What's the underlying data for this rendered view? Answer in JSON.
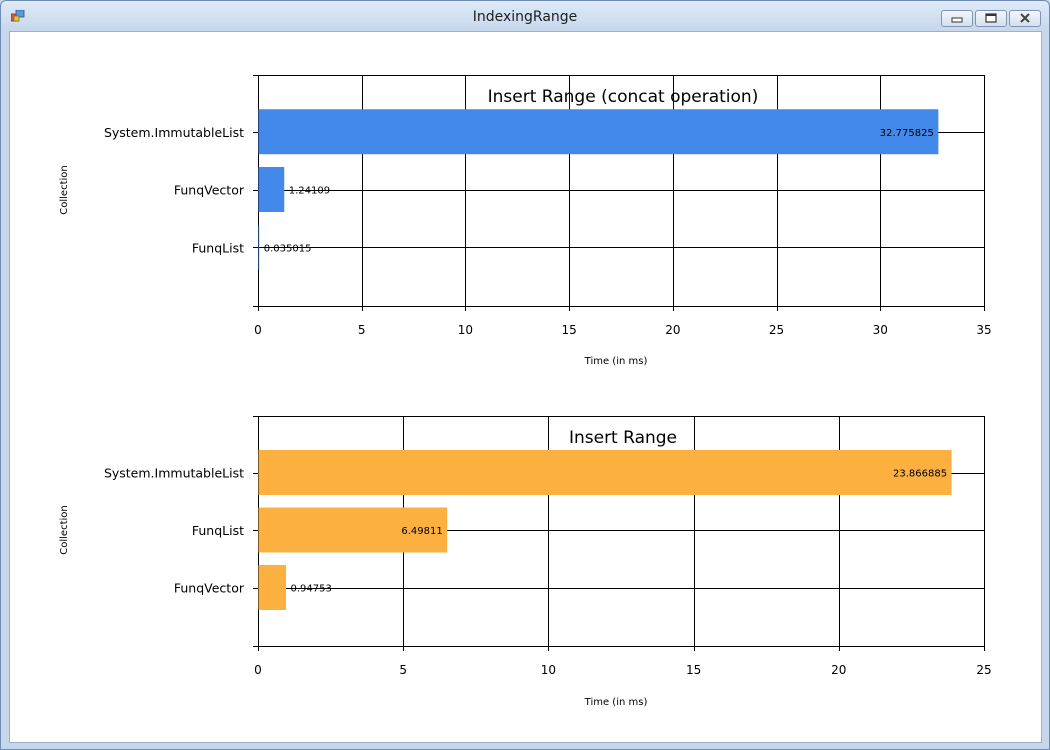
{
  "window": {
    "title": "IndexingRange",
    "controls": {
      "minimize": "minimize-icon",
      "maximize": "maximize-icon",
      "close": "close-icon"
    }
  },
  "chart_data": [
    {
      "type": "bar",
      "orientation": "horizontal",
      "title": "Insert Range (concat operation)",
      "xlabel": "Time (in ms)",
      "ylabel": "Collection",
      "categories": [
        "System.ImmutableList",
        "FunqVector",
        "FunqList"
      ],
      "values": [
        32.775825,
        1.24109,
        0.035015
      ],
      "labels": [
        "32.775825",
        "1.24109",
        "0.035015"
      ],
      "xlim": [
        0,
        35
      ],
      "xticks": [
        0,
        5,
        10,
        15,
        20,
        25,
        30,
        35
      ],
      "grid": true,
      "color": "#4389ea"
    },
    {
      "type": "bar",
      "orientation": "horizontal",
      "title": "Insert Range",
      "xlabel": "Time (in ms)",
      "ylabel": "Collection",
      "categories": [
        "System.ImmutableList",
        "FunqList",
        "FunqVector"
      ],
      "values": [
        23.866885,
        6.49811,
        0.94753
      ],
      "labels": [
        "23.866885",
        "6.49811",
        "0.94753"
      ],
      "xlim": [
        0,
        25
      ],
      "xticks": [
        0,
        5,
        10,
        15,
        20,
        25
      ],
      "grid": true,
      "color": "#fbb03f"
    }
  ]
}
